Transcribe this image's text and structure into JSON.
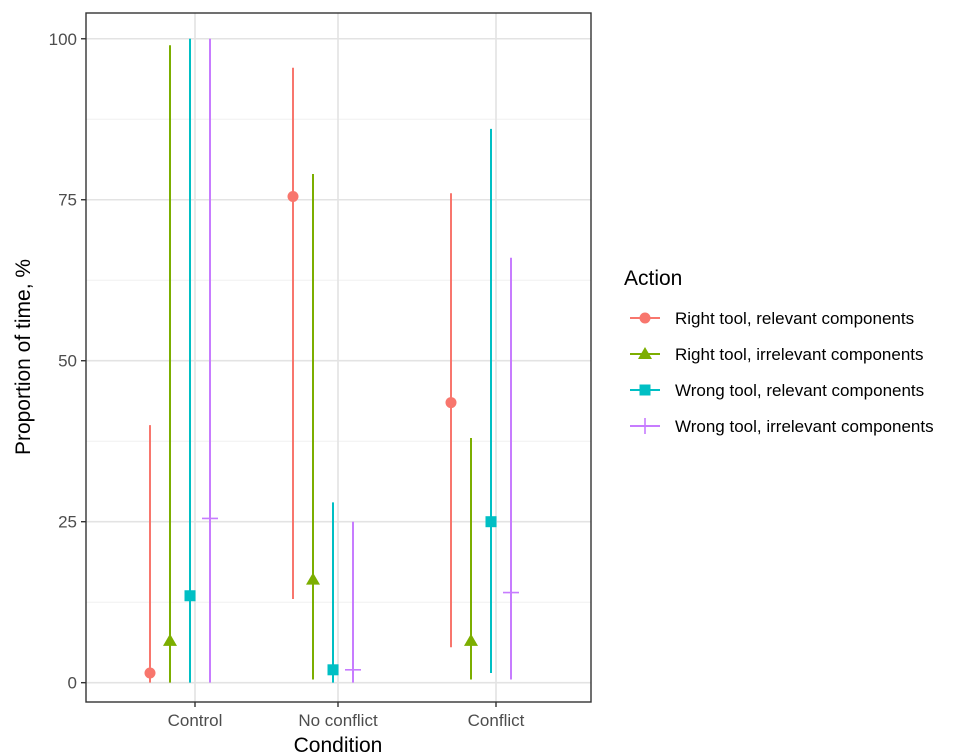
{
  "chart_data": {
    "type": "scatter",
    "subtype": "point-range",
    "xlabel": "Condition",
    "ylabel": "Proportion of time, %",
    "categories": [
      "Control",
      "No conflict",
      "Conflict"
    ],
    "ylim": [
      -3,
      104
    ],
    "yticks": [
      0,
      25,
      50,
      75,
      100
    ],
    "grid": true,
    "legend": {
      "title": "Action",
      "position": "right"
    },
    "series": [
      {
        "name": "Right tool, relevant components",
        "color": "#F8766D",
        "shape": "circle",
        "values": [
          1.5,
          75.5,
          43.5
        ],
        "lower": [
          0,
          13,
          5.5
        ],
        "upper": [
          40,
          95.5,
          76
        ]
      },
      {
        "name": "Right tool, irrelevant components",
        "color": "#7CAE00",
        "shape": "triangle",
        "values": [
          6.5,
          16,
          6.5
        ],
        "lower": [
          0,
          0.5,
          0.5
        ],
        "upper": [
          99,
          79,
          38
        ]
      },
      {
        "name": "Wrong tool, relevant components",
        "color": "#00BFC4",
        "shape": "square",
        "values": [
          13.5,
          2,
          25
        ],
        "lower": [
          0,
          0,
          1.5
        ],
        "upper": [
          100,
          28,
          86
        ]
      },
      {
        "name": "Wrong tool, irrelevant components",
        "color": "#C77CFF",
        "shape": "plus",
        "values": [
          25.5,
          2,
          14
        ],
        "lower": [
          0,
          0,
          0.5
        ],
        "upper": [
          100,
          25,
          66
        ]
      }
    ]
  }
}
